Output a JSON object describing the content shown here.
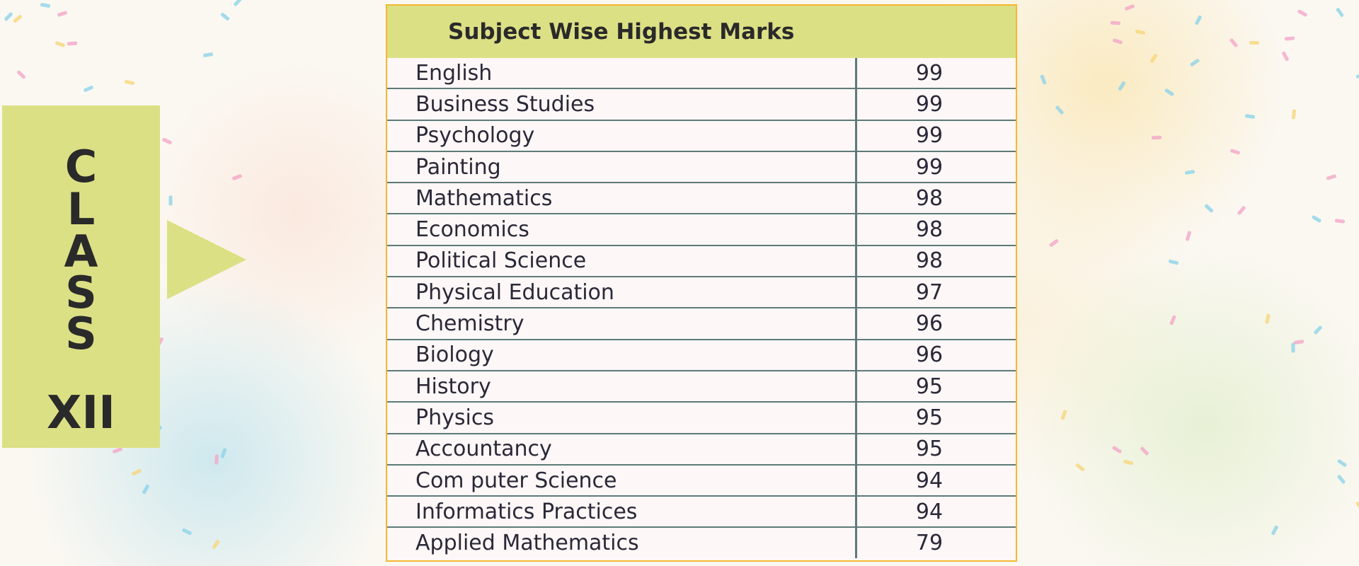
{
  "class_label": {
    "letters": [
      "C",
      "L",
      "A",
      "S",
      "S"
    ],
    "grade": "XII"
  },
  "table": {
    "title": "Subject Wise  Highest Marks",
    "rows": [
      {
        "subject": "English",
        "marks": "99"
      },
      {
        "subject": "Business Studies",
        "marks": "99"
      },
      {
        "subject": "Psychology",
        "marks": "99"
      },
      {
        "subject": "Painting",
        "marks": "99"
      },
      {
        "subject": "Mathematics",
        "marks": "98"
      },
      {
        "subject": "Economics",
        "marks": "98"
      },
      {
        "subject": "Political Science",
        "marks": "98"
      },
      {
        "subject": "Physical Education",
        "marks": "97"
      },
      {
        "subject": "Chemistry",
        "marks": "96"
      },
      {
        "subject": "Biology",
        "marks": "96"
      },
      {
        "subject": "History",
        "marks": "95"
      },
      {
        "subject": "Physics",
        "marks": "95"
      },
      {
        "subject": "Accountancy",
        "marks": "95"
      },
      {
        "subject": "Com puter Science",
        "marks": "94"
      },
      {
        "subject": "Informatics Practices",
        "marks": "94"
      },
      {
        "subject": "Applied Mathematics",
        "marks": "79"
      }
    ]
  },
  "colors": {
    "accent": "#dce085",
    "border": "#f5b731",
    "grid": "#5d7a78"
  }
}
